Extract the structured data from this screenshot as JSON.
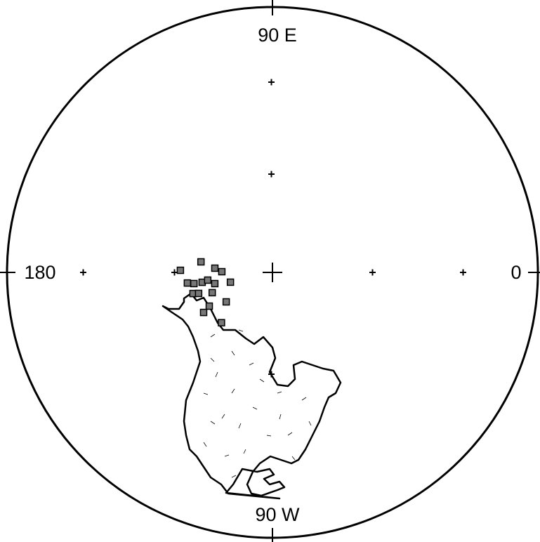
{
  "labels": {
    "top": "90 E",
    "bottom": "90 W",
    "left": "180",
    "right": "0"
  },
  "poles": [
    {
      "lon": 178.7,
      "lat": 61.6
    },
    {
      "lon": 171.6,
      "lat": 67.8
    },
    {
      "lon": 175.8,
      "lat": 72.3
    },
    {
      "lon": 179.2,
      "lat": 74.5
    },
    {
      "lon": -172.9,
      "lat": 63.6
    },
    {
      "lon": -171.9,
      "lat": 65.6
    },
    {
      "lon": -172,
      "lat": 68.2
    },
    {
      "lon": -173.2,
      "lat": 70
    },
    {
      "lon": -169,
      "lat": 72
    },
    {
      "lon": -166.9,
      "lat": 76.8
    },
    {
      "lon": -165.1,
      "lat": 64.7
    },
    {
      "lon": -161.4,
      "lat": 70.5
    },
    {
      "lon": -147.5,
      "lat": 73.2
    },
    {
      "lon": -151.9,
      "lat": 68
    },
    {
      "lon": -149.8,
      "lat": 65.5
    },
    {
      "lon": -135.4,
      "lat": 68
    },
    {
      "lon": -164.1,
      "lat": 66.4
    }
  ]
}
